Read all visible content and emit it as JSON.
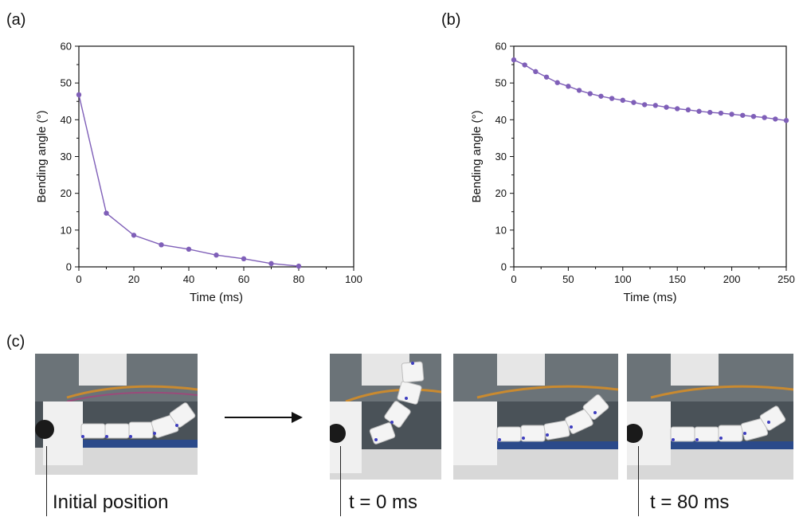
{
  "panels": {
    "a": "(a)",
    "b": "(b)",
    "c": "(c)"
  },
  "chart_data": [
    {
      "type": "line",
      "panel": "(a)",
      "xlabel": "Time (ms)",
      "ylabel": "Bending angle (°)",
      "xlim": [
        0,
        100
      ],
      "ylim": [
        0,
        60
      ],
      "xticks": [
        0,
        20,
        40,
        60,
        80,
        100
      ],
      "yticks": [
        0,
        10,
        20,
        30,
        40,
        50,
        60
      ],
      "grid": false,
      "color": "#7f5fb8",
      "x": [
        0,
        10,
        20,
        30,
        40,
        50,
        60,
        70,
        80
      ],
      "y": [
        46.8,
        14.6,
        8.6,
        6.0,
        4.8,
        3.2,
        2.2,
        0.9,
        0.2
      ]
    },
    {
      "type": "line",
      "panel": "(b)",
      "xlabel": "Time (ms)",
      "ylabel": "Bending angle (°)",
      "xlim": [
        0,
        250
      ],
      "ylim": [
        0,
        60
      ],
      "xticks": [
        0,
        50,
        100,
        150,
        200,
        250
      ],
      "yticks": [
        0,
        10,
        20,
        30,
        40,
        50,
        60
      ],
      "grid": false,
      "color": "#7f5fb8",
      "x": [
        0,
        10,
        20,
        30,
        40,
        50,
        60,
        70,
        80,
        90,
        100,
        110,
        120,
        130,
        140,
        150,
        160,
        170,
        180,
        190,
        200,
        210,
        220,
        230,
        240,
        250
      ],
      "y": [
        56.3,
        54.9,
        53.1,
        51.6,
        50.1,
        49.1,
        48.0,
        47.1,
        46.4,
        45.8,
        45.3,
        44.7,
        44.1,
        43.9,
        43.4,
        43.0,
        42.7,
        42.3,
        42.0,
        41.8,
        41.5,
        41.2,
        40.9,
        40.6,
        40.2,
        39.8
      ]
    }
  ],
  "captions": {
    "initial": "Initial position",
    "t0": "t = 0 ms",
    "t80": "t = 80 ms"
  }
}
